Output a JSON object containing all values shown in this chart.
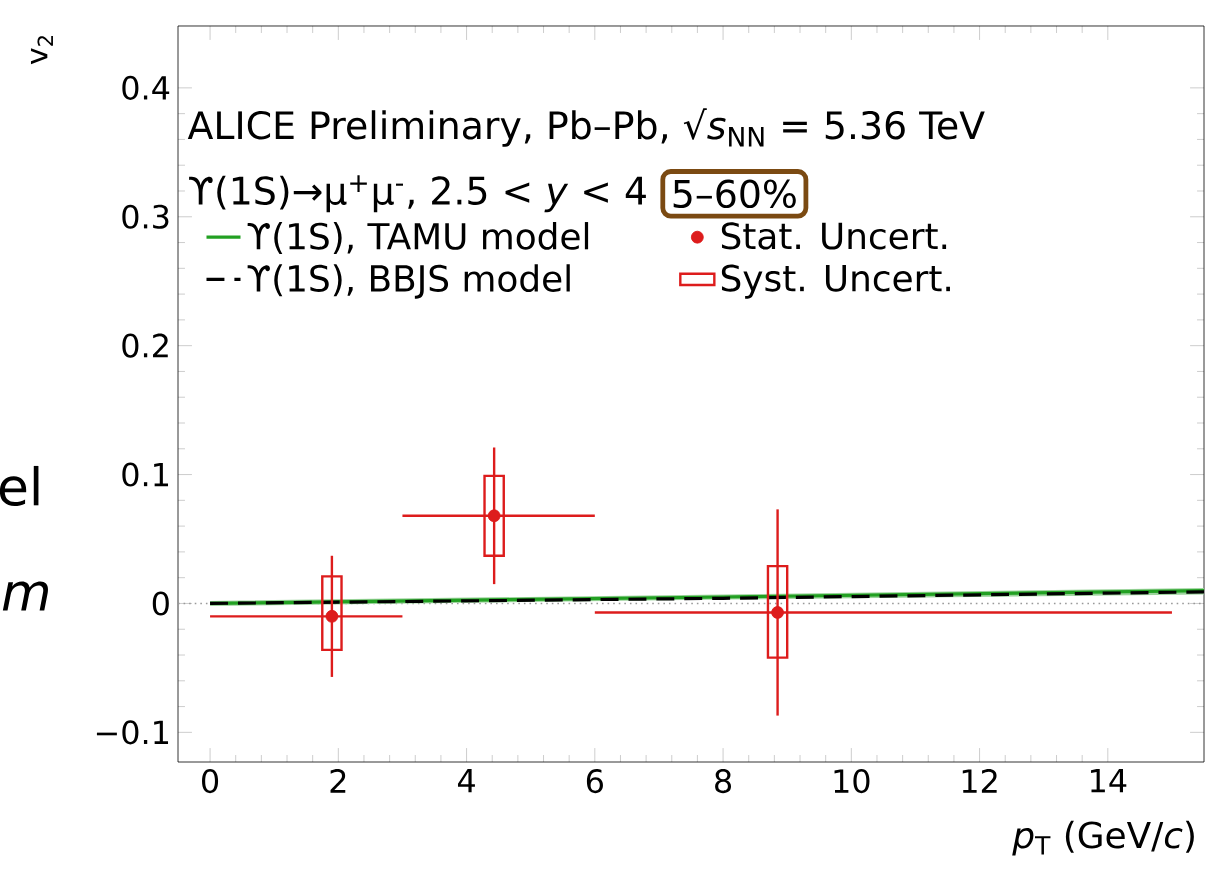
{
  "chart_data": {
    "type": "scatter",
    "xlabel": "*p*$_{T}$ (GeV/*c*)",
    "ylabel": "v$_{2}$",
    "xlim": [
      -0.5,
      15.5
    ],
    "ylim": [
      -0.123,
      0.448
    ],
    "xticks": [
      0,
      2,
      4,
      6,
      8,
      10,
      12,
      14
    ],
    "yticks": [
      {
        "value": -0.1,
        "label": "−0.1"
      },
      0,
      0.1,
      0.2,
      0.3,
      0.4
    ],
    "legend": "top left",
    "grid": false,
    "series": [
      {
        "name": "ϒ(1S), TAMU model",
        "type": "line",
        "color": "#22a022",
        "marker": "none",
        "line_style": "solid",
        "x": [
          0,
          8,
          15.5
        ],
        "values": [
          0,
          0.005,
          0.01
        ],
        "lower": [
          -0.002,
          0.003,
          0.007
        ],
        "upper": [
          0.002,
          0.007,
          0.012
        ]
      },
      {
        "name": "ϒ(1S), BBJS model",
        "type": "line",
        "color": "#000000",
        "marker": "none",
        "line_style": "dashed",
        "x": [
          0,
          8,
          15.5
        ],
        "values": [
          0,
          0.004,
          0.009
        ]
      },
      {
        "name": "Stat. Uncert.",
        "color": "#dd1c1c",
        "marker": "circle",
        "x": [
          1.9,
          4.43,
          8.85
        ],
        "values": [
          -0.01,
          0.068,
          -0.007
        ],
        "errors": [
          0.047,
          0.053,
          0.08
        ],
        "xerrors": [
          [
            0,
            3
          ],
          [
            3,
            6
          ],
          [
            6,
            15
          ]
        ]
      },
      {
        "name": "Syst. Uncert.",
        "type": "bar",
        "color": "#dd1c1c",
        "x": [
          1.9,
          4.43,
          8.85
        ],
        "base": [
          -0.036,
          0.037,
          -0.042
        ],
        "values": [
          0.057,
          0.062,
          0.071
        ]
      }
    ],
    "ref_lines": [
      {
        "axis": "y",
        "value": 0,
        "color": "#999999",
        "line_style": "dotted"
      }
    ],
    "annotations": [
      "ALICE Preliminary, Pb–Pb, √*s*$_{NN}$ = 5.36 TeV",
      "ϒ(1S)→μ$^{+}$μ$^{-}$, 2.5 < *y* < 4",
      "5–60%",
      "el",
      "m"
    ]
  }
}
